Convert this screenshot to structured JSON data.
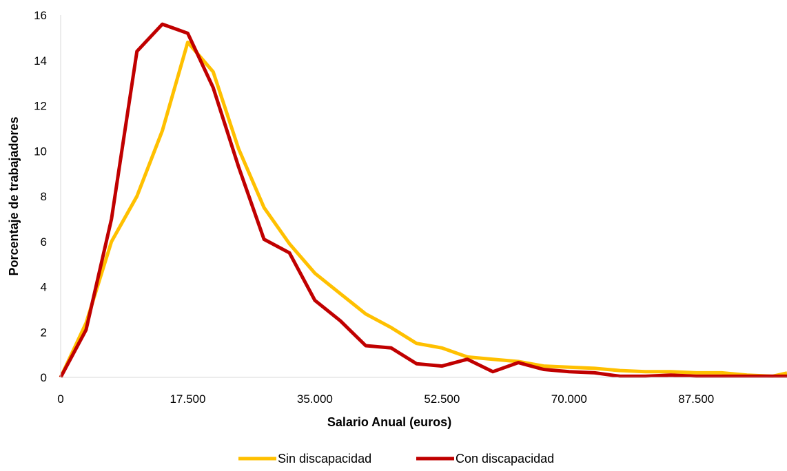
{
  "chart_data": {
    "type": "line",
    "title": "",
    "xlabel": "Salario Anual (euros)",
    "ylabel": "Porcentaje de trabajadores",
    "xlim": [
      0,
      100000
    ],
    "ylim": [
      0,
      16
    ],
    "x_tick_values": [
      0,
      17500,
      35000,
      52500,
      70000,
      87500
    ],
    "x_tick_labels": [
      "0",
      "17.500",
      "35.000",
      "52.500",
      "70.000",
      "87.500"
    ],
    "y_tick_values": [
      0,
      2,
      4,
      6,
      8,
      10,
      12,
      14,
      16
    ],
    "y_tick_labels": [
      "0",
      "2",
      "4",
      "6",
      "8",
      "10",
      "12",
      "14",
      "16"
    ],
    "legend_position": "bottom",
    "grid": false,
    "x": [
      0,
      3500,
      7000,
      10500,
      14000,
      17500,
      21000,
      24500,
      28000,
      31500,
      35000,
      38500,
      42000,
      45500,
      49000,
      52500,
      56000,
      59500,
      63000,
      66500,
      70000,
      73500,
      77000,
      80500,
      84000,
      87500,
      91000,
      94500,
      98000,
      101500
    ],
    "series": [
      {
        "name": "Sin discapacidad",
        "color": "#FFC000",
        "values": [
          0,
          2.4,
          6.0,
          8.0,
          10.9,
          14.8,
          13.5,
          10.1,
          7.5,
          5.9,
          4.6,
          3.7,
          2.8,
          2.2,
          1.5,
          1.3,
          0.9,
          0.8,
          0.7,
          0.5,
          0.45,
          0.4,
          0.3,
          0.25,
          0.25,
          0.2,
          0.2,
          0.1,
          0.05,
          0.3
        ]
      },
      {
        "name": "Con discapacidad",
        "color": "#C00000",
        "values": [
          0,
          2.1,
          7.0,
          14.4,
          15.6,
          15.2,
          12.8,
          9.3,
          6.1,
          5.5,
          3.4,
          2.5,
          1.4,
          1.3,
          0.6,
          0.5,
          0.8,
          0.25,
          0.65,
          0.35,
          0.25,
          0.2,
          0.05,
          0.05,
          0.1,
          0.05,
          0.05,
          0.05,
          0.05,
          0.05
        ]
      }
    ]
  }
}
